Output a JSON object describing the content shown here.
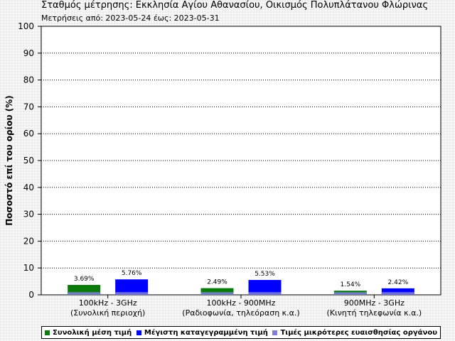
{
  "header": {
    "title": "Σταθμός μέτρησης: Εκκλησία Αγίου Αθανασίου, Οικισμός Πολυπλάτανου Φλώρινας",
    "subtitle": "Μετρήσεις από: 2023-05-24 έως: 2023-05-31"
  },
  "colors": {
    "mean": "#0a7a0a",
    "max": "#0000ff",
    "sensitivity": "#8080d8",
    "grid": "#000000",
    "plot_bg": "#ffffff"
  },
  "chart_data": {
    "type": "bar",
    "ylabel": "Ποσοστό επί του ορίου (%)",
    "xlabel": "",
    "ylim": [
      0,
      100
    ],
    "yticks": [
      0,
      10,
      20,
      30,
      40,
      50,
      60,
      70,
      80,
      90,
      100
    ],
    "grid": "horizontal dotted",
    "legend_position": "bottom",
    "categories": [
      [
        "100kHz - 3GHz",
        "(Συνολική περιοχή)"
      ],
      [
        "100kHz - 900MHz",
        "(Ραδιοφωνία, τηλεόραση κ.α.)"
      ],
      [
        "900MHz - 3GHz",
        "(Κινητή τηλεφωνία κ.α.)"
      ]
    ],
    "series": [
      {
        "name": "Συνολική μέση τιμή",
        "values": [
          3.69,
          2.49,
          1.54
        ],
        "labels": [
          "3.69%",
          "2.49%",
          "1.54%"
        ]
      },
      {
        "name": "Μέγιστη καταγεγραμμένη τιμή",
        "values": [
          5.76,
          5.53,
          2.42
        ],
        "labels": [
          "5.76%",
          "5.53%",
          "2.42%"
        ]
      }
    ],
    "sensitivity_legend": "Τιμές μικρότερες ευαισθησίας οργάνου",
    "sensitivity_level": 1.0
  }
}
